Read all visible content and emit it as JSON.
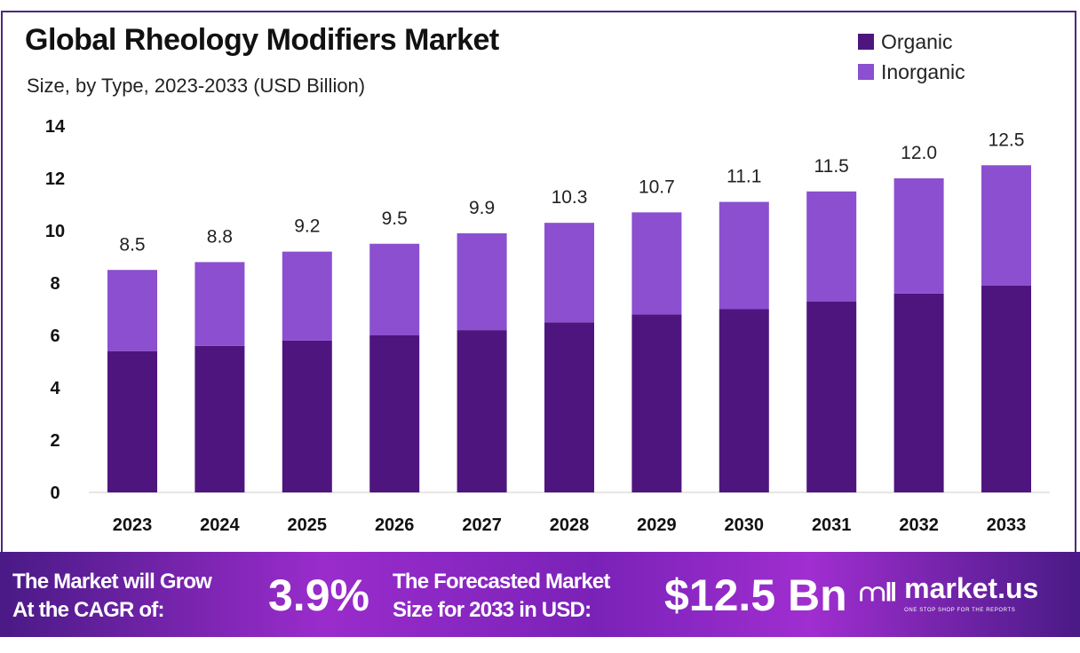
{
  "chart_data": {
    "type": "bar",
    "stacked": true,
    "title": "Global Rheology Modifiers Market",
    "subtitle": "Size, by Type, 2023-2033 (USD Billion)",
    "categories": [
      "2023",
      "2024",
      "2025",
      "2026",
      "2027",
      "2028",
      "2029",
      "2030",
      "2031",
      "2032",
      "2033"
    ],
    "series": [
      {
        "name": "Organic",
        "color": "#4e157f",
        "values": [
          5.4,
          5.6,
          5.8,
          6.0,
          6.2,
          6.5,
          6.8,
          7.0,
          7.3,
          7.6,
          7.9
        ]
      },
      {
        "name": "Inorganic",
        "color": "#8b4fd0",
        "values": [
          3.1,
          3.2,
          3.4,
          3.5,
          3.7,
          3.8,
          3.9,
          4.1,
          4.2,
          4.4,
          4.6
        ]
      }
    ],
    "totals": [
      "8.5",
      "8.8",
      "9.2",
      "9.5",
      "9.9",
      "10.3",
      "10.7",
      "11.1",
      "11.5",
      "12.0",
      "12.5"
    ],
    "yticks": [
      "0",
      "2",
      "4",
      "6",
      "8",
      "10",
      "12",
      "14"
    ],
    "ylim": [
      0,
      14
    ],
    "xlabel": "",
    "ylabel": "",
    "grid": false,
    "legend_position": "top-right"
  },
  "footer": {
    "cagr_label_1": "The Market will Grow",
    "cagr_label_2": "At the CAGR of:",
    "cagr_value": "3.9%",
    "forecast_label_1": "The Forecasted Market",
    "forecast_label_2": "Size for 2033 in USD:",
    "forecast_value": "$12.5 Bn",
    "logo_text": "market.us",
    "logo_tagline": "ONE STOP SHOP FOR THE REPORTS"
  }
}
